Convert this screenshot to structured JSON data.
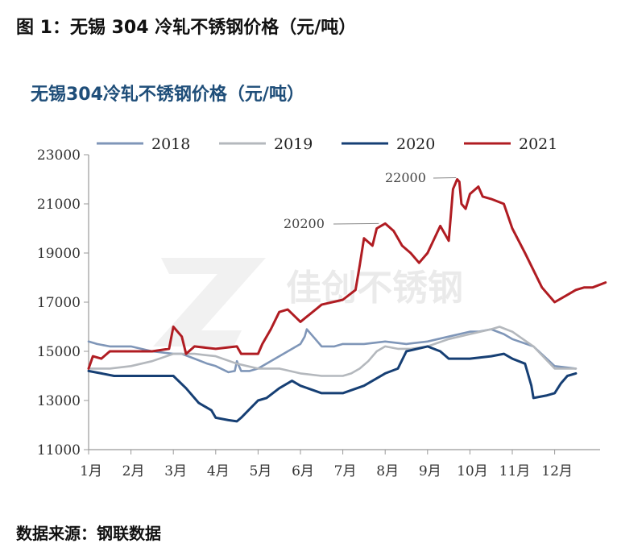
{
  "figure_title": "图 1：无锡 304 冷轧不锈钢价格（元/吨）",
  "source": "数据来源：钢联数据",
  "watermark": "佳创不锈钢",
  "colors": {
    "2018": "#7f96b8",
    "2019": "#b4b8bd",
    "2020": "#163f74",
    "2021": "#b01c22",
    "title": "#1f4e79"
  },
  "chart_data": {
    "type": "line",
    "title": "无锡304冷轧不锈钢价格（元/吨）",
    "x_tick_labels": [
      "1月",
      "2月",
      "3月",
      "4月",
      "5月",
      "6月",
      "7月",
      "8月",
      "9月",
      "10月",
      "11月",
      "12月"
    ],
    "x_unit": "month (1 = 1月)",
    "ylim": [
      11000,
      23000
    ],
    "y_ticks": [
      11000,
      13000,
      15000,
      17000,
      19000,
      21000,
      23000
    ],
    "legend": "top",
    "grid": false,
    "annotations": [
      {
        "text": "22000",
        "x": 9.75,
        "y": 22000
      },
      {
        "text": "20200",
        "x": 7.85,
        "y": 20200
      }
    ],
    "series": [
      {
        "name": "2018",
        "x": [
          1,
          1.2,
          1.5,
          2,
          2.5,
          3,
          3.2,
          3.5,
          3.8,
          4,
          4.3,
          4.45,
          4.5,
          4.6,
          4.8,
          5,
          5.5,
          6,
          6.1,
          6.15,
          6.3,
          6.5,
          6.8,
          7,
          7.5,
          8,
          8.5,
          9,
          9.5,
          10,
          10.2,
          10.5,
          10.8,
          11,
          11.5,
          12,
          12.5
        ],
        "y": [
          15400,
          15300,
          15200,
          15200,
          15000,
          14900,
          14900,
          14700,
          14500,
          14400,
          14150,
          14200,
          14600,
          14200,
          14200,
          14300,
          14800,
          15300,
          15600,
          15900,
          15600,
          15200,
          15200,
          15300,
          15300,
          15400,
          15300,
          15400,
          15600,
          15800,
          15800,
          15900,
          15700,
          15500,
          15200,
          14400,
          14300
        ]
      },
      {
        "name": "2019",
        "x": [
          1,
          1.5,
          2,
          2.5,
          3,
          3.5,
          4,
          4.5,
          5,
          5.5,
          6,
          6.5,
          7,
          7.2,
          7.4,
          7.6,
          7.8,
          8,
          8.3,
          8.6,
          9,
          9.5,
          10,
          10.5,
          10.7,
          11,
          11.5,
          12,
          12.5
        ],
        "y": [
          14300,
          14300,
          14400,
          14600,
          14900,
          14900,
          14800,
          14500,
          14300,
          14300,
          14100,
          14000,
          14000,
          14100,
          14300,
          14600,
          15000,
          15200,
          15100,
          15100,
          15200,
          15500,
          15700,
          15900,
          16000,
          15800,
          15200,
          14300,
          14300
        ]
      },
      {
        "name": "2020",
        "x": [
          1,
          1.3,
          1.6,
          2,
          2.5,
          3,
          3.3,
          3.6,
          3.9,
          4,
          4.3,
          4.5,
          4.6,
          5,
          5.2,
          5.5,
          5.8,
          6,
          6.5,
          7,
          7.5,
          8,
          8.3,
          8.5,
          9,
          9.3,
          9.5,
          10,
          10.5,
          10.8,
          11,
          11.3,
          11.45,
          11.5,
          11.8,
          12,
          12.15,
          12.3,
          12.5
        ],
        "y": [
          14200,
          14100,
          14000,
          14000,
          14000,
          14000,
          13500,
          12900,
          12600,
          12300,
          12200,
          12150,
          12300,
          13000,
          13100,
          13500,
          13800,
          13600,
          13300,
          13300,
          13600,
          14100,
          14300,
          15000,
          15200,
          15000,
          14700,
          14700,
          14800,
          14900,
          14700,
          14500,
          13600,
          13100,
          13200,
          13300,
          13700,
          14000,
          14100
        ]
      },
      {
        "name": "2021",
        "x": [
          1,
          1.1,
          1.3,
          1.5,
          2,
          2.5,
          2.9,
          3,
          3.2,
          3.3,
          3.5,
          4,
          4.5,
          4.6,
          5,
          5.1,
          5.3,
          5.5,
          5.7,
          6,
          6.5,
          7,
          7.3,
          7.4,
          7.5,
          7.7,
          7.8,
          7.9,
          8,
          8.2,
          8.3,
          8.4,
          8.6,
          8.8,
          9,
          9.3,
          9.5,
          9.6,
          9.7,
          9.75,
          9.8,
          9.9,
          10,
          10.2,
          10.3,
          10.5,
          10.8,
          11,
          11.3,
          11.7,
          12,
          12.3,
          12.5,
          12.7,
          12.9,
          13.2
        ],
        "y": [
          14300,
          14800,
          14700,
          15000,
          15000,
          15000,
          15100,
          16000,
          15600,
          14900,
          15200,
          15100,
          15200,
          14900,
          14900,
          15300,
          15900,
          16600,
          16700,
          16200,
          16900,
          17100,
          17500,
          18500,
          19600,
          19300,
          20000,
          20100,
          20200,
          19900,
          19600,
          19300,
          19000,
          18600,
          19000,
          20100,
          19500,
          21600,
          22000,
          21900,
          21000,
          20800,
          21400,
          21700,
          21300,
          21200,
          21000,
          20000,
          19000,
          17600,
          17000,
          17300,
          17500,
          17600,
          17600,
          17800
        ]
      }
    ]
  }
}
